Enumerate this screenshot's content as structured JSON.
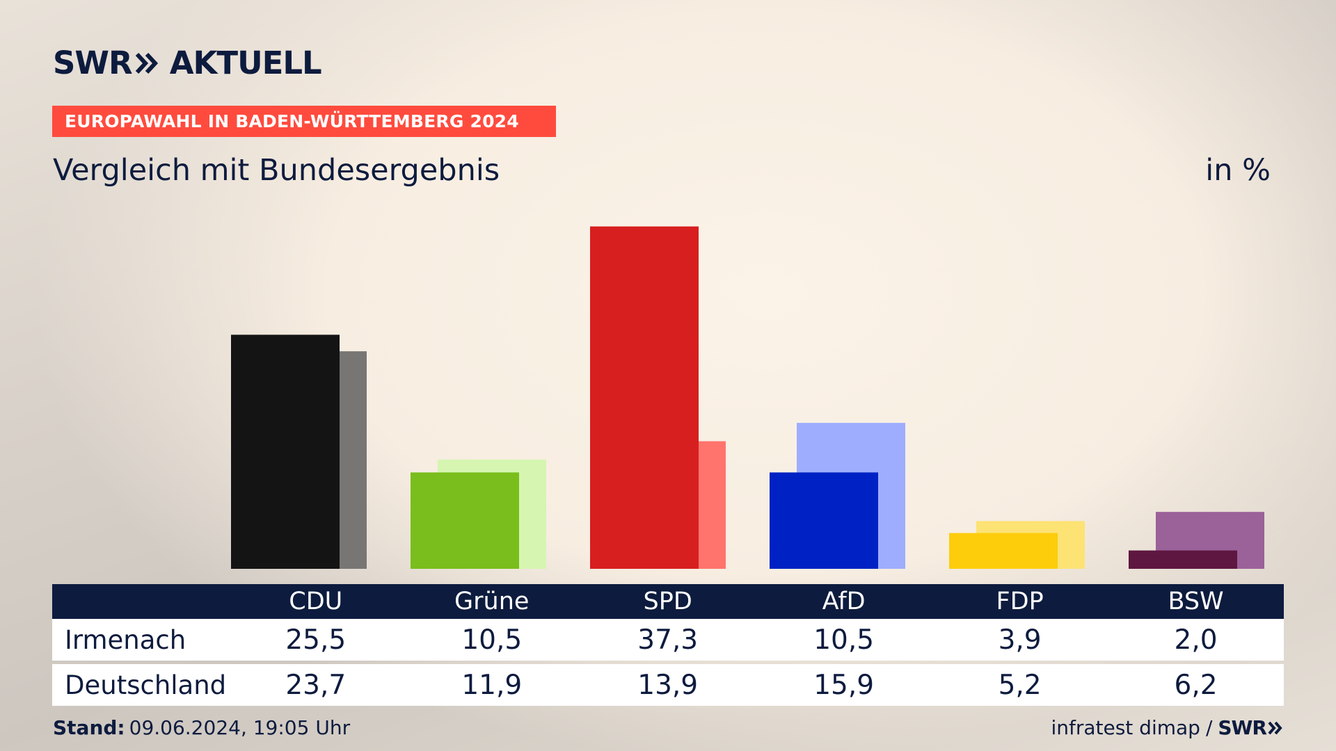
{
  "header": {
    "logo_swr": "SWR",
    "logo_aktuell": "AKTUELL",
    "banner": "EUROPAWAHL IN BADEN-WÜRTTEMBERG 2024",
    "subtitle": "Vergleich mit Bundesergebnis",
    "unit": "in %"
  },
  "chart_data": {
    "type": "bar",
    "categories": [
      "CDU",
      "Grüne",
      "SPD",
      "AfD",
      "FDP",
      "BSW"
    ],
    "series": [
      {
        "name": "Irmenach",
        "values": [
          25.5,
          10.5,
          37.3,
          10.5,
          3.9,
          2.0
        ]
      },
      {
        "name": "Deutschland",
        "values": [
          23.7,
          11.9,
          13.9,
          15.9,
          5.2,
          6.2
        ]
      }
    ],
    "colors": {
      "Irmenach": [
        "#141414",
        "#79be1c",
        "#d71f1f",
        "#0022c4",
        "#fdcd0c",
        "#5e1740"
      ],
      "Deutschland": [
        "#777674",
        "#d6f5b1",
        "#ff746d",
        "#9eadfd",
        "#fde274",
        "#9b6199"
      ]
    },
    "ylim": [
      0,
      40
    ]
  },
  "table": {
    "header": [
      "CDU",
      "Grüne",
      "SPD",
      "AfD",
      "FDP",
      "BSW"
    ],
    "rows": [
      {
        "label": "Irmenach",
        "values": [
          "25,5",
          "10,5",
          "37,3",
          "10,5",
          "3,9",
          "2,0"
        ]
      },
      {
        "label": "Deutschland",
        "values": [
          "23,7",
          "11,9",
          "13,9",
          "15,9",
          "5,2",
          "6,2"
        ]
      }
    ]
  },
  "footer": {
    "stand_label": "Stand:",
    "stand_value": "09.06.2024, 19:05 Uhr",
    "source": "infratest dimap",
    "separator": "/",
    "source_brand": "SWR"
  },
  "colors": {
    "navy": "#0d1b3e",
    "banner_red": "#ff4b3e"
  }
}
